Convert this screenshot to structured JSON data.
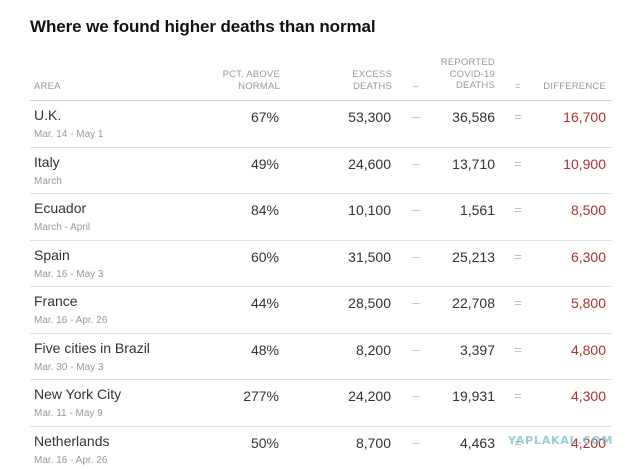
{
  "title": "Where we found higher deaths than normal",
  "headers": {
    "area": "AREA",
    "pct_line1": "PCT. ABOVE",
    "pct_line2": "NORMAL",
    "excess_line1": "EXCESS",
    "excess_line2": "DEATHS",
    "minus": "–",
    "reported_line1": "REPORTED",
    "reported_line2": "COVID-19",
    "reported_line3": "DEATHS",
    "equals": "=",
    "difference": "DIFFERENCE"
  },
  "rows": [
    {
      "area": "U.K.",
      "dates": "Mar. 14 - May 1",
      "pct": "67%",
      "excess": "53,300",
      "minus": "–",
      "reported": "36,586",
      "equals": "=",
      "difference": "16,700"
    },
    {
      "area": "Italy",
      "dates": "March",
      "pct": "49%",
      "excess": "24,600",
      "minus": "–",
      "reported": "13,710",
      "equals": "=",
      "difference": "10,900"
    },
    {
      "area": "Ecuador",
      "dates": "March - April",
      "pct": "84%",
      "excess": "10,100",
      "minus": "–",
      "reported": "1,561",
      "equals": "=",
      "difference": "8,500"
    },
    {
      "area": "Spain",
      "dates": "Mar. 16 - May 3",
      "pct": "60%",
      "excess": "31,500",
      "minus": "–",
      "reported": "25,213",
      "equals": "=",
      "difference": "6,300"
    },
    {
      "area": "France",
      "dates": "Mar. 16 - Apr. 26",
      "pct": "44%",
      "excess": "28,500",
      "minus": "–",
      "reported": "22,708",
      "equals": "=",
      "difference": "5,800"
    },
    {
      "area": "Five cities in Brazil",
      "dates": "Mar. 30 - May 3",
      "pct": "48%",
      "excess": "8,200",
      "minus": "–",
      "reported": "3,397",
      "equals": "=",
      "difference": "4,800"
    },
    {
      "area": "New York City",
      "dates": "Mar. 11 - May 9",
      "pct": "277%",
      "excess": "24,200",
      "minus": "–",
      "reported": "19,931",
      "equals": "=",
      "difference": "4,300"
    },
    {
      "area": "Netherlands",
      "dates": "Mar. 16 - Apr. 26",
      "pct": "50%",
      "excess": "8,700",
      "minus": "–",
      "reported": "4,463",
      "equals": "=",
      "difference": "4,200"
    }
  ],
  "watermark": "YAPLAKAL.COM",
  "colors": {
    "difference": "#b0312b",
    "header": "#999999",
    "rule": "#e2e2e2"
  }
}
